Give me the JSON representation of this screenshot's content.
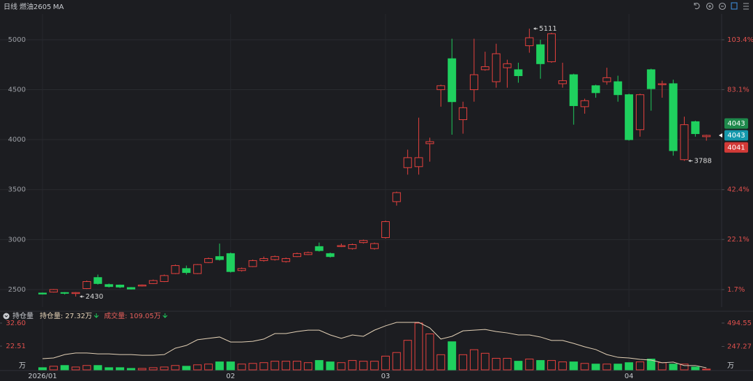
{
  "toolbar": {
    "period": "日线",
    "symbol": "燃油2605",
    "indicator": "MA"
  },
  "chart_data": [
    {
      "type": "candlestick",
      "categories": [
        "2026/01",
        null,
        null,
        null,
        null,
        null,
        null,
        null,
        null,
        null,
        null,
        null,
        null,
        null,
        null,
        null,
        null,
        "02",
        null,
        null,
        null,
        null,
        null,
        null,
        null,
        null,
        null,
        null,
        null,
        null,
        null,
        "03",
        null,
        null,
        null,
        null,
        null,
        null,
        null,
        null,
        null,
        null,
        null,
        null,
        null,
        null,
        null,
        null,
        null,
        null,
        null,
        null,
        null,
        "04",
        null,
        null,
        null,
        null,
        null,
        null,
        null
      ],
      "open": [
        2465,
        2475,
        2470,
        2460,
        2510,
        2620,
        2550,
        2545,
        2520,
        2535,
        2560,
        2580,
        2660,
        2710,
        2660,
        2770,
        2830,
        2860,
        2690,
        2730,
        2790,
        2800,
        2780,
        2830,
        2850,
        2930,
        2860,
        2930,
        2910,
        2970,
        2910,
        3020,
        3380,
        3720,
        3730,
        3960,
        4500,
        4810,
        4200,
        4500,
        4700,
        4580,
        4720,
        4700,
        4940,
        4950,
        4780,
        4560,
        4650,
        4330,
        4540,
        4580,
        4580,
        4450,
        4100,
        4700,
        4550,
        4560,
        3800,
        4180,
        4030
      ],
      "high": [
        2470,
        2505,
        2475,
        2475,
        2590,
        2650,
        2560,
        2550,
        2525,
        2550,
        2600,
        2650,
        2750,
        2740,
        2755,
        2820,
        2960,
        2870,
        2720,
        2800,
        2830,
        2840,
        2820,
        2870,
        2880,
        2970,
        2870,
        2960,
        2960,
        3000,
        2970,
        3190,
        3480,
        3900,
        4220,
        4020,
        4550,
        5010,
        4380,
        5010,
        4880,
        4960,
        4800,
        4770,
        5111,
        5000,
        5070,
        4770,
        4660,
        4410,
        4550,
        4720,
        4640,
        4460,
        4460,
        4710,
        4590,
        4600,
        4230,
        4190,
        4050
      ],
      "low": [
        2450,
        2470,
        2450,
        2430,
        2505,
        2550,
        2520,
        2515,
        2500,
        2530,
        2555,
        2575,
        2655,
        2650,
        2655,
        2765,
        2790,
        2670,
        2680,
        2725,
        2780,
        2790,
        2770,
        2825,
        2845,
        2880,
        2820,
        2925,
        2900,
        2960,
        2900,
        3010,
        3340,
        3650,
        3650,
        3780,
        4330,
        4050,
        4060,
        4380,
        4690,
        4520,
        4520,
        4570,
        4870,
        4610,
        4770,
        4520,
        4150,
        4260,
        4420,
        4550,
        4380,
        3990,
        4030,
        4290,
        4420,
        3840,
        3788,
        4030,
        3990
      ],
      "close": [
        2455,
        2500,
        2462,
        2470,
        2580,
        2560,
        2530,
        2525,
        2505,
        2545,
        2590,
        2640,
        2740,
        2670,
        2750,
        2810,
        2800,
        2680,
        2710,
        2790,
        2810,
        2830,
        2810,
        2860,
        2870,
        2890,
        2830,
        2940,
        2950,
        2990,
        2960,
        3180,
        3470,
        3820,
        3820,
        3980,
        4540,
        4380,
        4320,
        4650,
        4730,
        4860,
        4760,
        4640,
        5020,
        4760,
        5060,
        4590,
        4340,
        4390,
        4470,
        4620,
        4450,
        4000,
        4450,
        4510,
        4560,
        3890,
        4150,
        4060,
        4043
      ],
      "up_color": "#e8413e",
      "down_color": "#1fd05e",
      "ylim": [
        2325,
        5258
      ],
      "yticks": [
        2500,
        3000,
        3500,
        4000,
        4500,
        5000
      ],
      "y2lim": [
        -5.4,
        113.9
      ],
      "y2ticks": [
        {
          "value": 1.7,
          "label": "1.7%"
        },
        {
          "value": 22.1,
          "label": "22.1%"
        },
        {
          "value": 42.4,
          "label": "42.4%"
        },
        {
          "value": 83.1,
          "label": "83.1%"
        },
        {
          "value": 103.4,
          "label": "103.4%"
        }
      ],
      "grid": true,
      "high_marks": [
        5111
      ],
      "low_marks": [
        3788,
        2430
      ],
      "price_tags": [
        {
          "value": 4043,
          "color": "#1e8a4c"
        },
        {
          "value": 4043,
          "color": "#1599ad"
        },
        {
          "value": 4041,
          "color": "#d23a37"
        }
      ]
    },
    {
      "type": "bar",
      "title": "持仓量",
      "categories": [
        "2026/01",
        null,
        null,
        null,
        null,
        null,
        null,
        null,
        null,
        null,
        null,
        null,
        null,
        null,
        null,
        null,
        null,
        "02",
        null,
        null,
        null,
        null,
        null,
        null,
        null,
        null,
        null,
        null,
        null,
        null,
        null,
        "03",
        null,
        null,
        null,
        null,
        null,
        null,
        null,
        null,
        null,
        null,
        null,
        null,
        null,
        null,
        null,
        null,
        null,
        null,
        null,
        null,
        null,
        "04",
        null,
        null,
        null,
        null,
        null,
        null,
        null
      ],
      "series": [
        {
          "name": "持仓量: 27.32万",
          "type": "line",
          "axis": "y",
          "color": "#e6d3b8",
          "values": [
            17.0,
            17.3,
            18.8,
            19.5,
            19.5,
            19.1,
            19.1,
            18.8,
            18.8,
            18.5,
            18.5,
            18.8,
            21.6,
            22.8,
            25.3,
            25.9,
            26.5,
            24.3,
            24.3,
            24.6,
            25.6,
            28.0,
            28.0,
            28.9,
            29.5,
            29.5,
            27.4,
            25.9,
            27.4,
            26.8,
            29.5,
            31.4,
            32.9,
            32.9,
            32.9,
            30.5,
            25.6,
            26.8,
            29.2,
            29.5,
            29.8,
            28.9,
            28.3,
            27.4,
            27.4,
            26.5,
            25.0,
            25.0,
            23.7,
            22.2,
            21.0,
            18.8,
            17.6,
            17.3,
            16.7,
            16.4,
            15.2,
            15.5,
            14.0,
            14.0,
            13.0
          ]
        },
        {
          "name": "成交量: 109.05万",
          "type": "bar",
          "axis": "y2",
          "color": "#e8605c",
          "values": [
            23,
            38,
            46,
            30,
            46,
            46,
            23,
            23,
            15,
            15,
            23,
            30,
            46,
            38,
            53,
            61,
            84,
            84,
            61,
            68,
            76,
            91,
            91,
            91,
            76,
            99,
            84,
            76,
            99,
            91,
            91,
            145,
            183,
            312,
            494.55,
            380,
            160,
            297,
            160,
            213,
            175,
            122,
            122,
            91,
            114,
            99,
            99,
            84,
            84,
            68,
            61,
            61,
            61,
            76,
            84,
            114,
            76,
            61,
            61,
            30,
            8
          ]
        }
      ],
      "ylim": [
        12.11,
        34.13
      ],
      "yticks": [
        {
          "value": 32.6,
          "label": "32.60"
        },
        22.51
      ],
      "y2lim": [
        0,
        531
      ],
      "y2ticks": [
        494.55,
        247.27
      ],
      "y_unit": "万",
      "y2_unit": "万",
      "arrow_color": "#1fd05e"
    }
  ]
}
